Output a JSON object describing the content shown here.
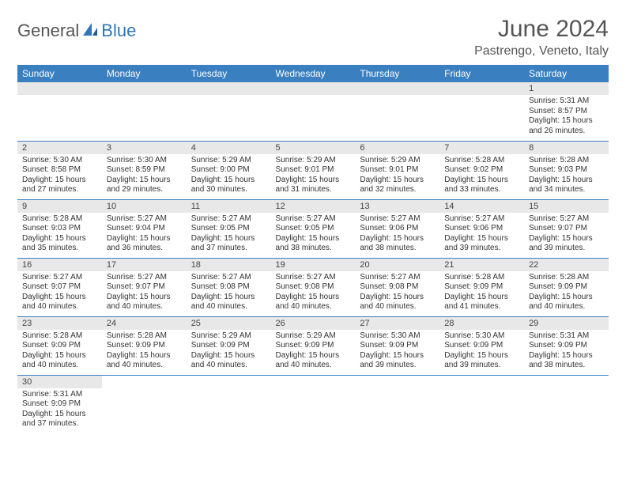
{
  "brand": {
    "part1": "General",
    "part2": "Blue"
  },
  "title": "June 2024",
  "location": "Pastrengo, Veneto, Italy",
  "colors": {
    "header_bg": "#3a7fc0",
    "header_text": "#ffffff",
    "daynum_bg": "#e8e8e8",
    "row_border": "#3a7fc0",
    "title_color": "#555555",
    "brand_gray": "#555555",
    "brand_blue": "#2e77b8"
  },
  "typography": {
    "title_fontsize": 30,
    "location_fontsize": 16,
    "header_fontsize": 12,
    "daynum_fontsize": 11,
    "body_fontsize": 10
  },
  "day_headers": [
    "Sunday",
    "Monday",
    "Tuesday",
    "Wednesday",
    "Thursday",
    "Friday",
    "Saturday"
  ],
  "weeks": [
    [
      null,
      null,
      null,
      null,
      null,
      null,
      {
        "n": "1",
        "sunrise": "5:31 AM",
        "sunset": "8:57 PM",
        "dl": "15 hours and 26 minutes."
      }
    ],
    [
      {
        "n": "2",
        "sunrise": "5:30 AM",
        "sunset": "8:58 PM",
        "dl": "15 hours and 27 minutes."
      },
      {
        "n": "3",
        "sunrise": "5:30 AM",
        "sunset": "8:59 PM",
        "dl": "15 hours and 29 minutes."
      },
      {
        "n": "4",
        "sunrise": "5:29 AM",
        "sunset": "9:00 PM",
        "dl": "15 hours and 30 minutes."
      },
      {
        "n": "5",
        "sunrise": "5:29 AM",
        "sunset": "9:01 PM",
        "dl": "15 hours and 31 minutes."
      },
      {
        "n": "6",
        "sunrise": "5:29 AM",
        "sunset": "9:01 PM",
        "dl": "15 hours and 32 minutes."
      },
      {
        "n": "7",
        "sunrise": "5:28 AM",
        "sunset": "9:02 PM",
        "dl": "15 hours and 33 minutes."
      },
      {
        "n": "8",
        "sunrise": "5:28 AM",
        "sunset": "9:03 PM",
        "dl": "15 hours and 34 minutes."
      }
    ],
    [
      {
        "n": "9",
        "sunrise": "5:28 AM",
        "sunset": "9:03 PM",
        "dl": "15 hours and 35 minutes."
      },
      {
        "n": "10",
        "sunrise": "5:27 AM",
        "sunset": "9:04 PM",
        "dl": "15 hours and 36 minutes."
      },
      {
        "n": "11",
        "sunrise": "5:27 AM",
        "sunset": "9:05 PM",
        "dl": "15 hours and 37 minutes."
      },
      {
        "n": "12",
        "sunrise": "5:27 AM",
        "sunset": "9:05 PM",
        "dl": "15 hours and 38 minutes."
      },
      {
        "n": "13",
        "sunrise": "5:27 AM",
        "sunset": "9:06 PM",
        "dl": "15 hours and 38 minutes."
      },
      {
        "n": "14",
        "sunrise": "5:27 AM",
        "sunset": "9:06 PM",
        "dl": "15 hours and 39 minutes."
      },
      {
        "n": "15",
        "sunrise": "5:27 AM",
        "sunset": "9:07 PM",
        "dl": "15 hours and 39 minutes."
      }
    ],
    [
      {
        "n": "16",
        "sunrise": "5:27 AM",
        "sunset": "9:07 PM",
        "dl": "15 hours and 40 minutes."
      },
      {
        "n": "17",
        "sunrise": "5:27 AM",
        "sunset": "9:07 PM",
        "dl": "15 hours and 40 minutes."
      },
      {
        "n": "18",
        "sunrise": "5:27 AM",
        "sunset": "9:08 PM",
        "dl": "15 hours and 40 minutes."
      },
      {
        "n": "19",
        "sunrise": "5:27 AM",
        "sunset": "9:08 PM",
        "dl": "15 hours and 40 minutes."
      },
      {
        "n": "20",
        "sunrise": "5:27 AM",
        "sunset": "9:08 PM",
        "dl": "15 hours and 40 minutes."
      },
      {
        "n": "21",
        "sunrise": "5:28 AM",
        "sunset": "9:09 PM",
        "dl": "15 hours and 41 minutes."
      },
      {
        "n": "22",
        "sunrise": "5:28 AM",
        "sunset": "9:09 PM",
        "dl": "15 hours and 40 minutes."
      }
    ],
    [
      {
        "n": "23",
        "sunrise": "5:28 AM",
        "sunset": "9:09 PM",
        "dl": "15 hours and 40 minutes."
      },
      {
        "n": "24",
        "sunrise": "5:28 AM",
        "sunset": "9:09 PM",
        "dl": "15 hours and 40 minutes."
      },
      {
        "n": "25",
        "sunrise": "5:29 AM",
        "sunset": "9:09 PM",
        "dl": "15 hours and 40 minutes."
      },
      {
        "n": "26",
        "sunrise": "5:29 AM",
        "sunset": "9:09 PM",
        "dl": "15 hours and 40 minutes."
      },
      {
        "n": "27",
        "sunrise": "5:30 AM",
        "sunset": "9:09 PM",
        "dl": "15 hours and 39 minutes."
      },
      {
        "n": "28",
        "sunrise": "5:30 AM",
        "sunset": "9:09 PM",
        "dl": "15 hours and 39 minutes."
      },
      {
        "n": "29",
        "sunrise": "5:31 AM",
        "sunset": "9:09 PM",
        "dl": "15 hours and 38 minutes."
      }
    ],
    [
      {
        "n": "30",
        "sunrise": "5:31 AM",
        "sunset": "9:09 PM",
        "dl": "15 hours and 37 minutes."
      },
      null,
      null,
      null,
      null,
      null,
      null
    ]
  ],
  "labels": {
    "sunrise": "Sunrise:",
    "sunset": "Sunset:",
    "daylight": "Daylight:"
  }
}
